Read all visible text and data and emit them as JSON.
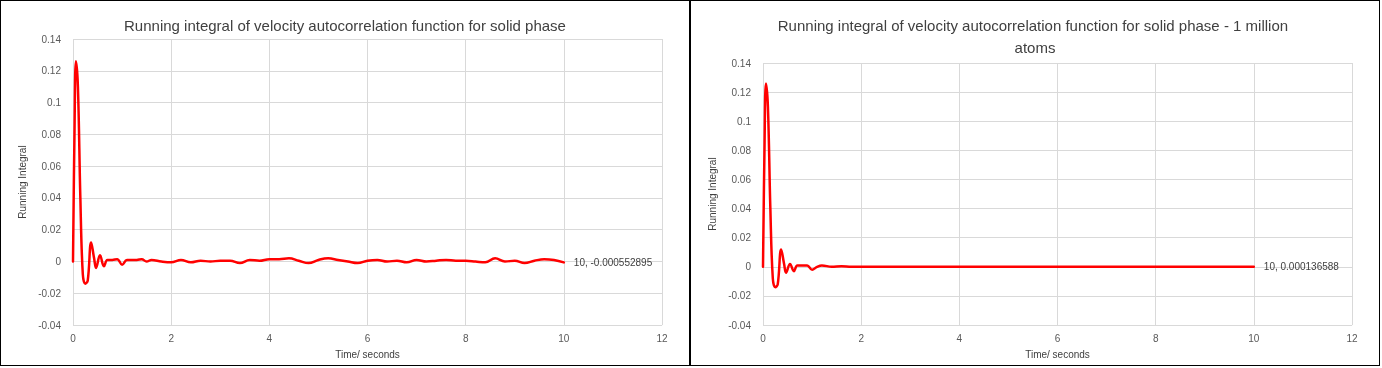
{
  "chart_data": [
    {
      "type": "line",
      "title": "Running integral of velocity autocorrelation function for solid phase",
      "xlabel": "Time/ seconds",
      "ylabel": "Running Integral",
      "xlim": [
        0,
        12
      ],
      "xticks": [
        0,
        2,
        4,
        6,
        8,
        10,
        12
      ],
      "ylim": [
        -0.04,
        0.14
      ],
      "yticks": [
        -0.04,
        -0.02,
        0,
        0.02,
        0.04,
        0.06,
        0.08,
        0.1,
        0.12,
        0.14
      ],
      "grid": true,
      "marker": "none",
      "line_style": "solid",
      "series": [
        {
          "color": "#ff0000",
          "x": [
            0,
            0.03,
            0.06,
            0.1,
            0.15,
            0.2,
            0.25,
            0.3,
            0.37,
            0.43,
            0.47,
            0.55,
            0.63,
            0.7,
            0.8,
            0.9,
            1.0,
            1.1,
            1.3,
            1.4,
            1.5,
            1.6,
            1.8,
            2.0,
            2.2,
            2.4,
            2.6,
            2.8,
            3.0,
            3.2,
            3.4,
            3.6,
            3.8,
            4.0,
            4.2,
            4.4,
            4.6,
            4.8,
            5.0,
            5.2,
            5.4,
            5.6,
            5.8,
            6.0,
            6.2,
            6.4,
            6.6,
            6.8,
            7.0,
            7.2,
            7.4,
            7.6,
            7.8,
            8.0,
            8.2,
            8.4,
            8.6,
            8.8,
            9.0,
            9.2,
            9.4,
            9.6,
            9.8,
            10
          ],
          "values": [
            0,
            0.08,
            0.126,
            0.11,
            0.04,
            -0.008,
            -0.014,
            -0.012,
            0.012,
            0.002,
            -0.004,
            0.004,
            -0.003,
            0.001,
            0.001,
            0.0015,
            -0.002,
            0.001,
            0.001,
            0.0015,
            0,
            0.001,
            0,
            -0.0005,
            0.001,
            -0.0005,
            0.0005,
            0,
            0.0005,
            0.0005,
            -0.001,
            0.001,
            0.0005,
            0.0015,
            0.0015,
            0.002,
            0.0005,
            -0.001,
            0.001,
            0.002,
            0.001,
            0,
            -0.001,
            0.0005,
            0.001,
            0,
            0.0005,
            -0.0005,
            0.001,
            0,
            0.0005,
            0.001,
            0.0005,
            0.0005,
            0,
            -0.0005,
            0.002,
            0,
            0.0005,
            -0.001,
            0.0005,
            0.0015,
            0.001,
            -0.000552895
          ],
          "value_labels": [
            null,
            null,
            null,
            null,
            null,
            null,
            null,
            null,
            null,
            null,
            null,
            null,
            null,
            null,
            null,
            null,
            null,
            null,
            null,
            null,
            null,
            null,
            null,
            null,
            null,
            null,
            null,
            null,
            null,
            null,
            null,
            null,
            null,
            null,
            null,
            null,
            null,
            null,
            null,
            null,
            null,
            null,
            null,
            null,
            null,
            null,
            null,
            null,
            null,
            null,
            null,
            null,
            null,
            null,
            null,
            null,
            null,
            null,
            null,
            null,
            null,
            null,
            null,
            "10, -0.000552895"
          ]
        }
      ]
    },
    {
      "type": "line",
      "title": "Running integral of velocity autocorrelation function for solid phase - 1 million atoms",
      "xlabel": "Time/ seconds",
      "ylabel": "Running Integral",
      "xlim": [
        0,
        12
      ],
      "xticks": [
        0,
        2,
        4,
        6,
        8,
        10,
        12
      ],
      "ylim": [
        -0.04,
        0.14
      ],
      "yticks": [
        -0.04,
        -0.02,
        0,
        0.02,
        0.04,
        0.06,
        0.08,
        0.1,
        0.12,
        0.14
      ],
      "grid": true,
      "marker": "none",
      "line_style": "solid",
      "series": [
        {
          "color": "#ff0000",
          "x": [
            0,
            0.03,
            0.06,
            0.1,
            0.15,
            0.2,
            0.25,
            0.3,
            0.37,
            0.43,
            0.47,
            0.55,
            0.63,
            0.7,
            0.8,
            0.9,
            1.0,
            1.1,
            1.2,
            1.4,
            1.6,
            1.8,
            2.0,
            3.0,
            4.0,
            5.0,
            6.0,
            7.0,
            8.0,
            9.0,
            10
          ],
          "values": [
            0,
            0.08,
            0.126,
            0.11,
            0.04,
            -0.008,
            -0.014,
            -0.012,
            0.012,
            0.002,
            -0.004,
            0.002,
            -0.003,
            0.001,
            0.001,
            0.001,
            -0.002,
            0,
            0.001,
            0,
            0.0005,
            0,
            0,
            0,
            0,
            0,
            0,
            0,
            0,
            0,
            0.000136588
          ],
          "value_labels": [
            null,
            null,
            null,
            null,
            null,
            null,
            null,
            null,
            null,
            null,
            null,
            null,
            null,
            null,
            null,
            null,
            null,
            null,
            null,
            null,
            null,
            null,
            null,
            null,
            null,
            null,
            null,
            null,
            null,
            null,
            "10, 0.000136588"
          ]
        }
      ]
    }
  ]
}
